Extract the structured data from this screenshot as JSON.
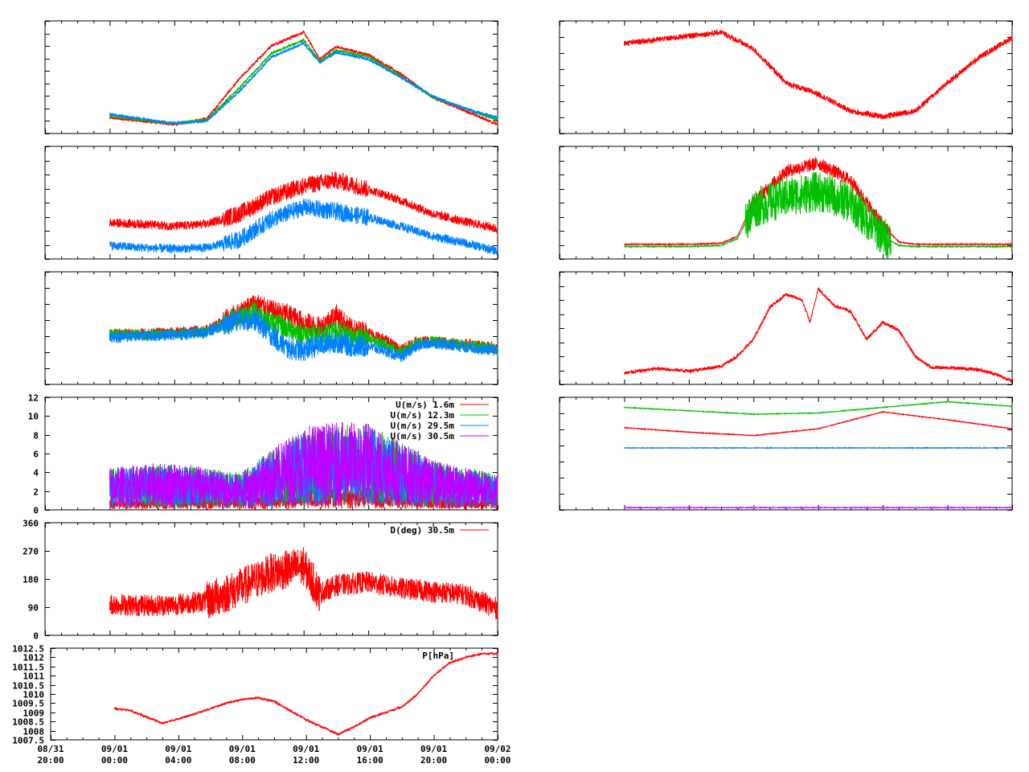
{
  "x_ticks": [
    {
      "line1": "08/31",
      "line2": "20:00"
    },
    {
      "line1": "09/01",
      "line2": "00:00"
    },
    {
      "line1": "09/01",
      "line2": "04:00"
    },
    {
      "line1": "09/01",
      "line2": "08:00"
    },
    {
      "line1": "09/01",
      "line2": "12:00"
    },
    {
      "line1": "09/01",
      "line2": "16:00"
    },
    {
      "line1": "09/01",
      "line2": "20:00"
    },
    {
      "line1": "09/02",
      "line2": "00:00"
    }
  ],
  "colors": {
    "red": "#ff0000",
    "green": "#00c000",
    "blue": "#0080ff",
    "purple": "#c000ff"
  },
  "chart_data": [
    {
      "id": "temp_profile",
      "type": "line",
      "grid": false,
      "x_range_hours": [
        -4,
        24
      ],
      "ylim": [
        0,
        100
      ],
      "series": [
        {
          "color": "red",
          "x": [
            0,
            2,
            4,
            6,
            8,
            10,
            12,
            13,
            14,
            16,
            18,
            20,
            22,
            24
          ],
          "y": [
            14,
            11,
            8,
            13,
            48,
            78,
            90,
            66,
            77,
            70,
            53,
            32,
            20,
            8
          ]
        },
        {
          "color": "green",
          "x": [
            0,
            2,
            4,
            6,
            8,
            10,
            12,
            13,
            14,
            16,
            18,
            20,
            22,
            24
          ],
          "y": [
            16,
            12,
            9,
            12,
            40,
            71,
            83,
            64,
            74,
            68,
            51,
            32,
            22,
            12
          ]
        },
        {
          "color": "blue",
          "x": [
            0,
            2,
            4,
            6,
            8,
            10,
            12,
            13,
            14,
            16,
            18,
            20,
            22,
            24
          ],
          "y": [
            17,
            13,
            9,
            11,
            37,
            68,
            80,
            63,
            72,
            66,
            50,
            33,
            22,
            14
          ]
        }
      ]
    },
    {
      "id": "humidity_profile",
      "type": "line",
      "grid": false,
      "x_range_hours": [
        -4,
        24
      ],
      "ylim": [
        0,
        100
      ],
      "series": [
        {
          "color": "red",
          "x": [
            0,
            2,
            4,
            6,
            8,
            10,
            12,
            14,
            16,
            18,
            20,
            22,
            24
          ],
          "y": [
            32,
            31,
            29,
            31,
            40,
            55,
            65,
            70,
            62,
            52,
            40,
            33,
            27
          ]
        },
        {
          "color": "blue",
          "x": [
            0,
            2,
            4,
            6,
            8,
            10,
            12,
            14,
            16,
            18,
            20,
            22,
            24
          ],
          "y": [
            12,
            10,
            9,
            10,
            17,
            35,
            46,
            42,
            37,
            29,
            20,
            14,
            7
          ]
        }
      ]
    },
    {
      "id": "sonic_temp",
      "type": "line",
      "grid": false,
      "x_range_hours": [
        -4,
        24
      ],
      "ylim": [
        0,
        100
      ],
      "series": [
        {
          "color": "red",
          "x": [
            0,
            2,
            4,
            6,
            8,
            9,
            10,
            11,
            12,
            13,
            14,
            15,
            16,
            17,
            18,
            19,
            20,
            22,
            24
          ],
          "y": [
            45,
            45,
            46,
            48,
            63,
            72,
            65,
            62,
            55,
            50,
            62,
            48,
            46,
            40,
            30,
            38,
            38,
            36,
            32
          ]
        },
        {
          "color": "green",
          "x": [
            0,
            2,
            4,
            6,
            8,
            9,
            10,
            11,
            12,
            13,
            14,
            15,
            16,
            17,
            18,
            19,
            20,
            22,
            24
          ],
          "y": [
            44,
            44,
            45,
            47,
            60,
            65,
            55,
            50,
            45,
            42,
            48,
            42,
            40,
            36,
            28,
            36,
            38,
            35,
            31
          ]
        },
        {
          "color": "blue",
          "x": [
            0,
            2,
            4,
            6,
            8,
            9,
            10,
            11,
            12,
            13,
            14,
            15,
            16,
            17,
            18,
            19,
            20,
            22,
            24
          ],
          "y": [
            42,
            43,
            44,
            46,
            58,
            57,
            44,
            32,
            30,
            35,
            38,
            34,
            34,
            30,
            24,
            34,
            37,
            33,
            30
          ]
        }
      ]
    },
    {
      "id": "wind_speed",
      "type": "line",
      "grid": false,
      "x_range_hours": [
        -4,
        24
      ],
      "ylim": [
        0,
        12
      ],
      "yticks": [
        "0",
        "2",
        "4",
        "6",
        "8",
        "10",
        "12"
      ],
      "legend": "top-right",
      "series": [
        {
          "name": "U(m/s)  1.6m",
          "color": "red",
          "x": [
            0,
            4,
            8,
            12,
            16,
            20,
            24
          ],
          "y": [
            0.6,
            0.7,
            0.8,
            1.2,
            1.3,
            0.9,
            0.6
          ]
        },
        {
          "name": "U(m/s) 12.3m",
          "color": "green",
          "x": [
            0,
            4,
            8,
            12,
            16,
            20,
            24
          ],
          "y": [
            2.4,
            2.6,
            2.1,
            4.6,
            4.9,
            2.8,
            2.0
          ]
        },
        {
          "name": "U(m/s) 29.5m",
          "color": "blue",
          "x": [
            0,
            4,
            8,
            12,
            16,
            20,
            24
          ],
          "y": [
            2.3,
            2.5,
            2.0,
            4.4,
            4.7,
            2.7,
            1.9
          ]
        },
        {
          "name": "U(m/s) 30.5m",
          "color": "purple",
          "x": [
            0,
            4,
            8,
            12,
            16,
            20,
            24
          ],
          "y": [
            2.4,
            2.7,
            2.0,
            4.8,
            5.0,
            2.8,
            2.0
          ]
        }
      ]
    },
    {
      "id": "wind_direction",
      "type": "line",
      "grid": false,
      "x_range_hours": [
        -4,
        24
      ],
      "ylim": [
        0,
        360
      ],
      "yticks": [
        "0",
        "90",
        "180",
        "270",
        "360"
      ],
      "legend": "top-right",
      "series": [
        {
          "name": "D(deg)  30.5m",
          "color": "red",
          "x": [
            0,
            2,
            4,
            6,
            8,
            10,
            12,
            13,
            14,
            16,
            18,
            20,
            22,
            24
          ],
          "y": [
            100,
            95,
            98,
            110,
            150,
            200,
            220,
            135,
            160,
            170,
            150,
            140,
            130,
            85
          ]
        }
      ]
    },
    {
      "id": "pressure",
      "type": "line",
      "grid": false,
      "x_range_hours": [
        -4,
        24
      ],
      "ylim": [
        1007.5,
        1012.5
      ],
      "yticks": [
        "1007.5",
        "1008",
        "1008.5",
        "1009",
        "1009.5",
        "1010",
        "1010.5",
        "1011",
        "1011.5",
        "1012",
        "1012.5"
      ],
      "legend": "top-right",
      "series": [
        {
          "name": "P[hPa]",
          "color": "red",
          "x": [
            0,
            1,
            3,
            5,
            7,
            8,
            9,
            10,
            11,
            12,
            13,
            14,
            15,
            16,
            17,
            18,
            19,
            20,
            21,
            22,
            23,
            24
          ],
          "y": [
            1009.2,
            1009.1,
            1008.4,
            1008.9,
            1009.5,
            1009.7,
            1009.8,
            1009.6,
            1009.1,
            1008.6,
            1008.2,
            1007.8,
            1008.2,
            1008.7,
            1009.0,
            1009.3,
            1010.0,
            1011.0,
            1011.7,
            1012.0,
            1012.2,
            1012.2
          ]
        }
      ]
    },
    {
      "id": "right_temp",
      "type": "line",
      "grid": false,
      "x_range_hours": [
        -4,
        24
      ],
      "ylim": [
        0,
        100
      ],
      "series": [
        {
          "color": "red",
          "x": [
            0,
            3,
            6,
            8,
            10,
            12,
            14,
            16,
            18,
            20,
            22,
            24
          ],
          "y": [
            80,
            85,
            90,
            75,
            45,
            35,
            20,
            15,
            20,
            45,
            68,
            85
          ]
        }
      ]
    },
    {
      "id": "right_radiation",
      "type": "line",
      "grid": false,
      "x_range_hours": [
        -4,
        24
      ],
      "ylim": [
        0,
        100
      ],
      "series": [
        {
          "color": "red",
          "x": [
            0,
            4,
            6,
            7,
            8,
            10,
            12,
            14,
            16,
            17,
            18,
            20,
            24
          ],
          "y": [
            13,
            13,
            14,
            20,
            50,
            78,
            85,
            70,
            30,
            15,
            13,
            13,
            13
          ]
        },
        {
          "color": "green",
          "x": [
            0,
            4,
            6,
            7,
            8,
            10,
            12,
            14,
            16,
            17,
            18,
            20,
            24
          ],
          "y": [
            11,
            11,
            12,
            18,
            45,
            55,
            60,
            50,
            20,
            12,
            11,
            11,
            11
          ]
        }
      ]
    },
    {
      "id": "right_flux",
      "type": "line",
      "grid": false,
      "x_range_hours": [
        -4,
        24
      ],
      "ylim": [
        0,
        100
      ],
      "series": [
        {
          "color": "red",
          "x": [
            0,
            2,
            4,
            6,
            7,
            8,
            9,
            10,
            11,
            11.5,
            12,
            13,
            14,
            15,
            16,
            17,
            18,
            19,
            20,
            21,
            22,
            23,
            24
          ],
          "y": [
            10,
            14,
            12,
            16,
            25,
            40,
            68,
            80,
            75,
            55,
            85,
            70,
            65,
            40,
            55,
            48,
            25,
            15,
            15,
            14,
            13,
            9,
            3
          ]
        }
      ]
    },
    {
      "id": "right_soil",
      "type": "line",
      "grid": false,
      "x_range_hours": [
        -4,
        24
      ],
      "ylim": [
        0,
        100
      ],
      "series": [
        {
          "color": "green",
          "x": [
            0,
            4,
            8,
            12,
            16,
            20,
            24
          ],
          "y": [
            91,
            88,
            85,
            86,
            91,
            96,
            92
          ]
        },
        {
          "color": "red",
          "x": [
            0,
            4,
            8,
            12,
            16,
            20,
            24
          ],
          "y": [
            73,
            69,
            66,
            72,
            87,
            80,
            72
          ]
        },
        {
          "color": "blue",
          "x": [
            0,
            6,
            12,
            18,
            24
          ],
          "y": [
            55,
            55,
            55,
            55,
            55
          ]
        },
        {
          "color": "purple",
          "x": [
            0,
            6,
            12,
            18,
            24
          ],
          "y": [
            2,
            2,
            2,
            2,
            2
          ]
        }
      ]
    }
  ]
}
